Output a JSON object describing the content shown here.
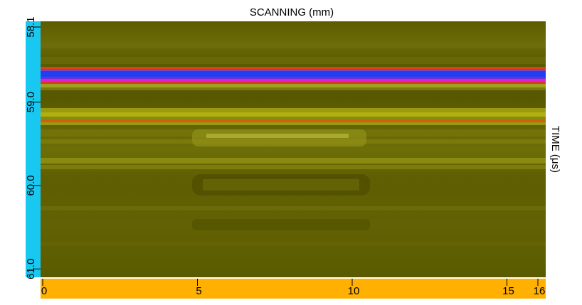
{
  "chart_data": {
    "type": "bscan",
    "title": "SCANNING (mm)",
    "y_label": "TIME (μs)",
    "xlim": [
      0,
      16
    ],
    "xticks": [
      0,
      5,
      10,
      15,
      16
    ],
    "ylim": [
      58.1,
      61.1
    ],
    "yticks": [
      58.1,
      {
        "value": 59,
        "label": "59.0"
      },
      {
        "value": 60,
        "label": "60.0"
      },
      {
        "value": 61,
        "label": "61.0"
      }
    ],
    "x_axis_color": "#ffb000",
    "y_axis_color": "#19c8f0"
  }
}
